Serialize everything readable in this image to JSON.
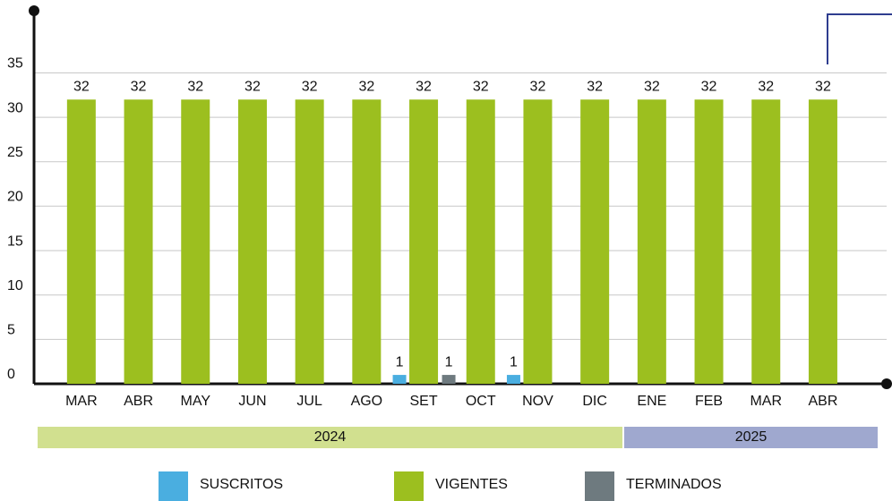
{
  "chart_data": {
    "type": "bar",
    "categories": [
      "MAR",
      "ABR",
      "MAY",
      "JUN",
      "JUL",
      "AGO",
      "SET",
      "OCT",
      "NOV",
      "DIC",
      "ENE",
      "FEB",
      "MAR",
      "ABR"
    ],
    "year_groups": [
      {
        "label": "2024",
        "start": 0,
        "end": 9,
        "color": "#d1e08f"
      },
      {
        "label": "2025",
        "start": 10,
        "end": 13,
        "color": "#9fa8cf"
      }
    ],
    "series": [
      {
        "name": "SUSCRITOS",
        "color": "#4aaee0",
        "values": [
          null,
          null,
          null,
          null,
          null,
          null,
          1,
          null,
          1,
          null,
          null,
          null,
          null,
          null
        ]
      },
      {
        "name": "VIGENTES",
        "color": "#9cbf1f",
        "values": [
          32,
          32,
          32,
          32,
          32,
          32,
          32,
          32,
          32,
          32,
          32,
          32,
          32,
          32
        ]
      },
      {
        "name": "TERMINADOS",
        "color": "#6e7a7f",
        "values": [
          null,
          null,
          null,
          null,
          null,
          null,
          1,
          null,
          null,
          null,
          null,
          null,
          null,
          null
        ]
      }
    ],
    "ylim": [
      0,
      42
    ],
    "yticks": [
      0,
      5,
      10,
      15,
      20,
      25,
      30,
      35
    ],
    "grid": true
  }
}
